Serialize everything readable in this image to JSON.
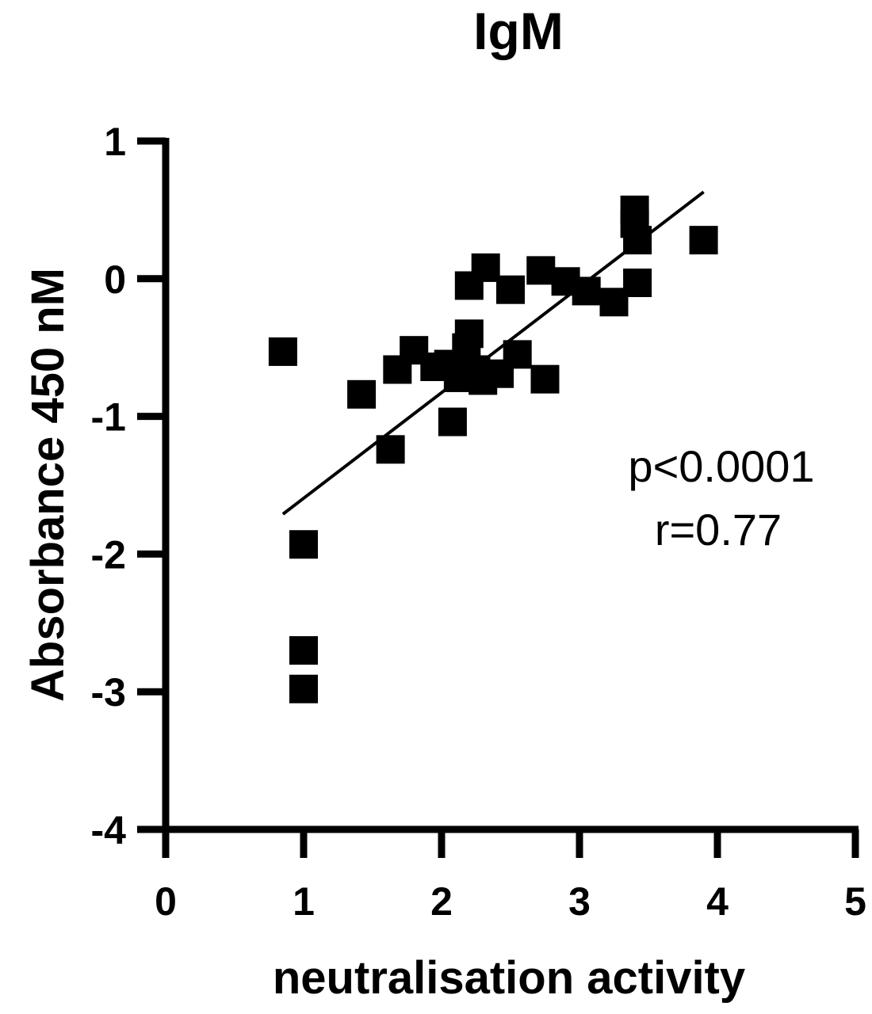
{
  "chart_data": {
    "type": "scatter",
    "title": "IgM",
    "xlabel": "neutralisation activity",
    "ylabel": "Absorbance 450 nM",
    "xlim": [
      0,
      5
    ],
    "ylim": [
      -4,
      1
    ],
    "xticks": [
      "0",
      "1",
      "2",
      "3",
      "4",
      "5"
    ],
    "yticks": [
      "1",
      "0",
      "-1",
      "-2",
      "-3",
      "-4"
    ],
    "marker": "square",
    "color": "#000000",
    "points": [
      {
        "x": 0.85,
        "y": -0.53
      },
      {
        "x": 1.0,
        "y": -1.93
      },
      {
        "x": 1.0,
        "y": -2.7
      },
      {
        "x": 1.0,
        "y": -2.98
      },
      {
        "x": 1.42,
        "y": -0.84
      },
      {
        "x": 1.63,
        "y": -1.24
      },
      {
        "x": 1.68,
        "y": -0.66
      },
      {
        "x": 1.8,
        "y": -0.52
      },
      {
        "x": 1.95,
        "y": -0.64
      },
      {
        "x": 2.05,
        "y": -0.62
      },
      {
        "x": 2.08,
        "y": -1.04
      },
      {
        "x": 2.12,
        "y": -0.72
      },
      {
        "x": 2.18,
        "y": -0.5
      },
      {
        "x": 2.2,
        "y": -0.4
      },
      {
        "x": 2.2,
        "y": -0.05
      },
      {
        "x": 2.25,
        "y": -0.66
      },
      {
        "x": 2.3,
        "y": -0.74
      },
      {
        "x": 2.32,
        "y": 0.08
      },
      {
        "x": 2.42,
        "y": -0.69
      },
      {
        "x": 2.5,
        "y": -0.08
      },
      {
        "x": 2.55,
        "y": -0.55
      },
      {
        "x": 2.72,
        "y": 0.06
      },
      {
        "x": 2.75,
        "y": -0.73
      },
      {
        "x": 2.9,
        "y": -0.02
      },
      {
        "x": 3.05,
        "y": -0.09
      },
      {
        "x": 3.25,
        "y": -0.17
      },
      {
        "x": 3.4,
        "y": 0.5
      },
      {
        "x": 3.4,
        "y": 0.4
      },
      {
        "x": 3.42,
        "y": 0.28
      },
      {
        "x": 3.42,
        "y": -0.03
      },
      {
        "x": 3.9,
        "y": 0.28
      }
    ],
    "fit_line": {
      "x": [
        0.85,
        3.9
      ],
      "y": [
        -1.71,
        0.63
      ]
    },
    "annotations": [
      "p<0.0001",
      "r=0.77"
    ],
    "grid": false,
    "legend": "none"
  }
}
